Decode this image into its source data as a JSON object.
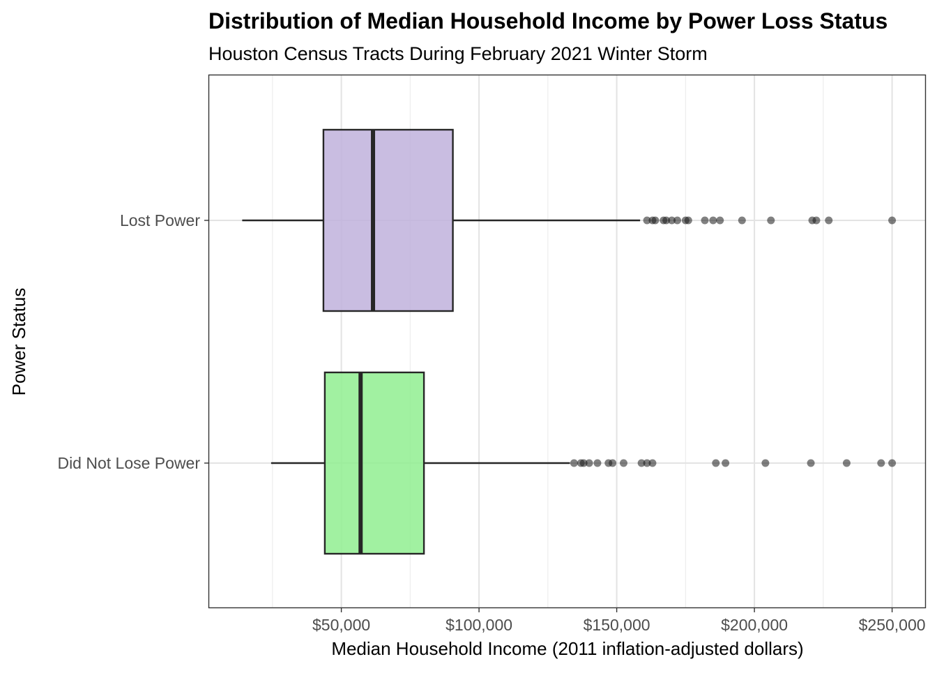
{
  "chart_data": {
    "type": "boxplot",
    "orientation": "horizontal",
    "title": "Distribution of Median Household Income by Power Loss Status",
    "subtitle": "Houston Census Tracts During February 2021 Winter Storm",
    "xlabel": "Median Household Income (2011 inflation-adjusted dollars)",
    "ylabel": "Power Status",
    "xlim": [
      2000,
      262000
    ],
    "x_ticks": [
      50000,
      100000,
      150000,
      200000,
      250000
    ],
    "x_tick_labels": [
      "$50,000",
      "$100,000",
      "$150,000",
      "$200,000",
      "$250,000"
    ],
    "grid": true,
    "legend": "none",
    "categories": [
      "Lost Power",
      "Did Not Lose Power"
    ],
    "series": [
      {
        "category": "Lost Power",
        "color": "#bfb2dc",
        "whisker_low": 14000,
        "q1": 43500,
        "median": 61500,
        "q3": 90500,
        "whisker_high": 158500,
        "outliers": [
          161000,
          163000,
          164000,
          167000,
          168000,
          170000,
          172000,
          175000,
          176000,
          182000,
          185000,
          187500,
          195500,
          206000,
          221000,
          222500,
          227000,
          250000
        ]
      },
      {
        "category": "Did Not Lose Power",
        "color": "#90ee90",
        "whisker_low": 24500,
        "q1": 44000,
        "median": 57000,
        "q3": 80000,
        "whisker_high": 133000,
        "outliers": [
          134500,
          137000,
          138000,
          140000,
          143000,
          147000,
          148500,
          152500,
          159000,
          161000,
          163000,
          186000,
          189500,
          204000,
          220500,
          233500,
          246000,
          250000
        ]
      }
    ]
  }
}
